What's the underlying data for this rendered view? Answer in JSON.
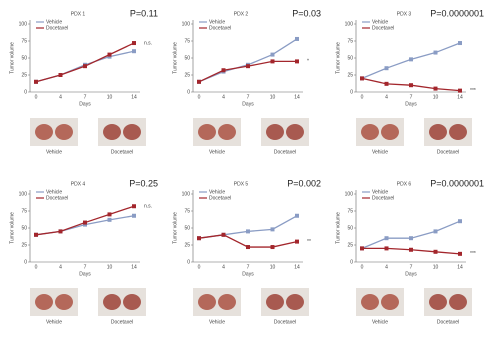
{
  "chart_data": [
    {
      "type": "line",
      "title": "PDX 1",
      "p_value": "P=0.11",
      "annotation": "n.s.",
      "x_label": "Days",
      "y_label": "Tumor volume",
      "categories": [
        "0",
        "4",
        "7",
        "10",
        "14"
      ],
      "ylim": [
        0,
        100
      ],
      "yticks": [
        0,
        25,
        50,
        75,
        100
      ],
      "series": [
        {
          "name": "Vehicle",
          "color": "#8a9cc4",
          "values": [
            15,
            25,
            40,
            52,
            60
          ]
        },
        {
          "name": "Docetaxel",
          "color": "#a3262c",
          "values": [
            15,
            25,
            38,
            55,
            72
          ]
        }
      ]
    },
    {
      "type": "line",
      "title": "PDX 2",
      "p_value": "P=0.03",
      "annotation": "*",
      "x_label": "Days",
      "y_label": "Tumor volume",
      "categories": [
        "0",
        "4",
        "7",
        "10",
        "14"
      ],
      "ylim": [
        0,
        100
      ],
      "yticks": [
        0,
        25,
        50,
        75,
        100
      ],
      "series": [
        {
          "name": "Vehicle",
          "color": "#8a9cc4",
          "values": [
            15,
            30,
            40,
            55,
            78
          ]
        },
        {
          "name": "Docetaxel",
          "color": "#a3262c",
          "values": [
            15,
            32,
            38,
            45,
            45
          ]
        }
      ]
    },
    {
      "type": "line",
      "title": "PDX 3",
      "p_value": "P=0.0000001",
      "annotation": "***",
      "x_label": "Days",
      "y_label": "Tumor volume",
      "categories": [
        "0",
        "4",
        "7",
        "10",
        "14"
      ],
      "ylim": [
        0,
        100
      ],
      "yticks": [
        0,
        25,
        50,
        75,
        100
      ],
      "series": [
        {
          "name": "Vehicle",
          "color": "#8a9cc4",
          "values": [
            20,
            35,
            48,
            58,
            72
          ]
        },
        {
          "name": "Docetaxel",
          "color": "#a3262c",
          "values": [
            20,
            12,
            10,
            5,
            2
          ]
        }
      ]
    },
    {
      "type": "line",
      "title": "PDX 4",
      "p_value": "P=0.25",
      "annotation": "n.s.",
      "x_label": "Days",
      "y_label": "Tumor volume",
      "categories": [
        "0",
        "4",
        "7",
        "10",
        "14"
      ],
      "ylim": [
        0,
        100
      ],
      "yticks": [
        0,
        25,
        50,
        75,
        100
      ],
      "series": [
        {
          "name": "Vehicle",
          "color": "#8a9cc4",
          "values": [
            40,
            45,
            55,
            62,
            68
          ]
        },
        {
          "name": "Docetaxel",
          "color": "#a3262c",
          "values": [
            40,
            45,
            58,
            70,
            82
          ]
        }
      ]
    },
    {
      "type": "line",
      "title": "PDX 5",
      "p_value": "P=0.002",
      "annotation": "**",
      "x_label": "Days",
      "y_label": "Tumor volume",
      "categories": [
        "0",
        "4",
        "7",
        "10",
        "14"
      ],
      "ylim": [
        0,
        100
      ],
      "yticks": [
        0,
        25,
        50,
        75,
        100
      ],
      "series": [
        {
          "name": "Vehicle",
          "color": "#8a9cc4",
          "values": [
            35,
            40,
            45,
            48,
            68
          ]
        },
        {
          "name": "Docetaxel",
          "color": "#a3262c",
          "values": [
            35,
            40,
            22,
            22,
            30
          ]
        }
      ]
    },
    {
      "type": "line",
      "title": "PDX 6",
      "p_value": "P=0.0000001",
      "annotation": "***",
      "x_label": "Days",
      "y_label": "Tumor volume",
      "categories": [
        "0",
        "4",
        "7",
        "10",
        "14"
      ],
      "ylim": [
        0,
        100
      ],
      "yticks": [
        0,
        25,
        50,
        75,
        100
      ],
      "series": [
        {
          "name": "Vehicle",
          "color": "#8a9cc4",
          "values": [
            20,
            35,
            35,
            45,
            60
          ]
        },
        {
          "name": "Docetaxel",
          "color": "#a3262c",
          "values": [
            20,
            20,
            18,
            15,
            12
          ]
        }
      ]
    }
  ],
  "photo_labels": [
    "Vehicle",
    "Docetaxel"
  ]
}
